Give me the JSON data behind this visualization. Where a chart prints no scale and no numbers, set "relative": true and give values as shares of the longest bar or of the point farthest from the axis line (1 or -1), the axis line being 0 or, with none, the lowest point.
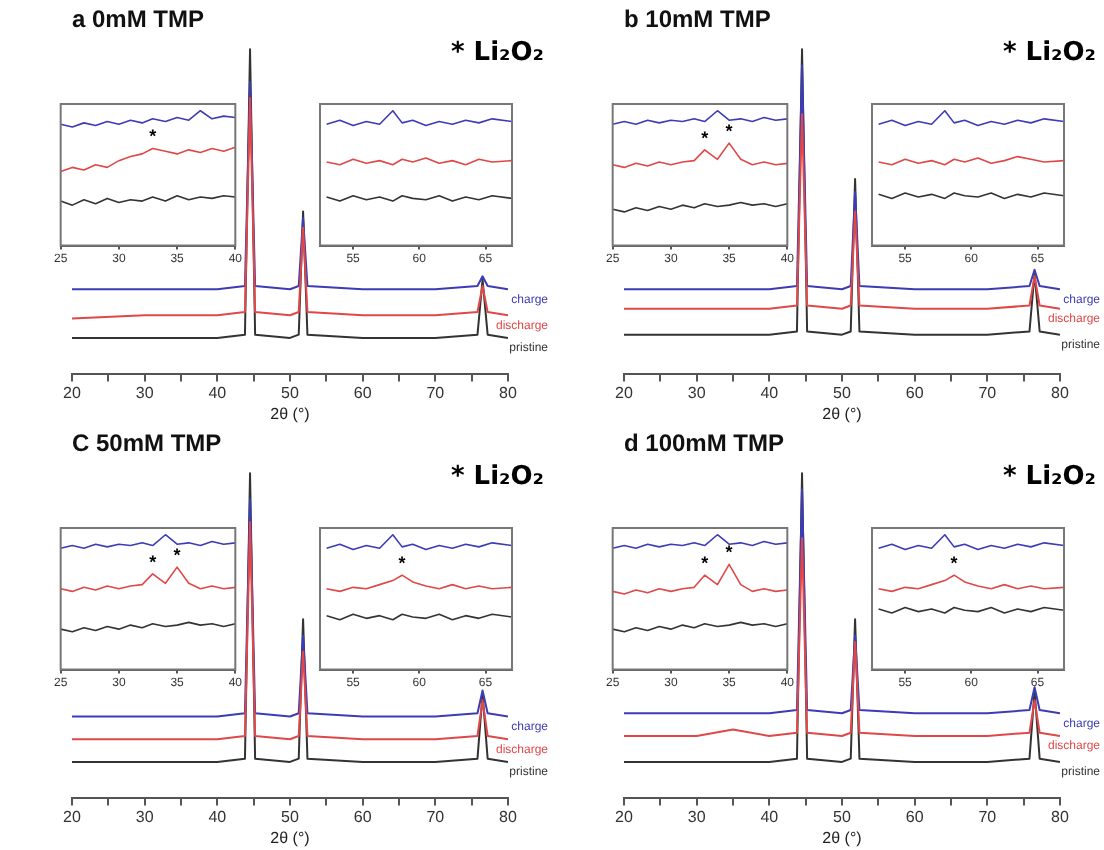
{
  "chart_data": [
    {
      "type": "line",
      "title": "a 0mM TMP",
      "xlabel": "2θ (°)",
      "relative": true,
      "xlim": [
        20,
        80
      ],
      "xticks": [
        20,
        {
          "value": 25,
          "label": null
        },
        30,
        {
          "value": 35,
          "label": null
        },
        40,
        {
          "value": 45,
          "label": null
        },
        50,
        {
          "value": 55,
          "label": null
        },
        60,
        {
          "value": 65,
          "label": null
        },
        70,
        {
          "value": 75,
          "label": null
        },
        80
      ],
      "annotations": [
        "* Li₂O₂"
      ],
      "x": [
        20,
        30,
        40,
        43.8,
        44.5,
        45.2,
        50,
        51.2,
        51.8,
        52.4,
        60,
        70,
        75.8,
        76.5,
        77.2,
        80
      ],
      "series": [
        {
          "name": "charge",
          "color": "#3c3cb4",
          "values": [
            0.26,
            0.26,
            0.26,
            0.27,
            0.9,
            0.27,
            0.26,
            0.27,
            0.48,
            0.27,
            0.26,
            0.26,
            0.27,
            0.3,
            0.27,
            0.26
          ]
        },
        {
          "name": "discharge",
          "color": "#e04848",
          "values": [
            0.17,
            0.18,
            0.18,
            0.19,
            0.85,
            0.19,
            0.18,
            0.19,
            0.45,
            0.19,
            0.18,
            0.18,
            0.19,
            0.27,
            0.19,
            0.18
          ]
        },
        {
          "name": "pristine",
          "color": "#333333",
          "values": [
            0.11,
            0.11,
            0.11,
            0.12,
            1,
            0.12,
            0.11,
            0.12,
            0.5,
            0.12,
            0.11,
            0.11,
            0.12,
            0.29,
            0.12,
            0.11
          ]
        }
      ]
    },
    {
      "type": "line",
      "relative": true,
      "xlim": [
        25,
        40
      ],
      "xticks": [
        25,
        30,
        35,
        40
      ],
      "annotations": [
        {
          "text": "*",
          "x": 32.9,
          "y": 0.72
        }
      ],
      "x": [
        25,
        26,
        27,
        28,
        29,
        30,
        31,
        32,
        32.9,
        34,
        35,
        36,
        37,
        38,
        39,
        40
      ],
      "series": [
        {
          "color": "#3c3cb4",
          "values": [
            0.9,
            0.88,
            0.91,
            0.89,
            0.92,
            0.9,
            0.93,
            0.91,
            0.94,
            0.92,
            0.95,
            0.93,
            1,
            0.94,
            0.96,
            0.95
          ]
        },
        {
          "color": "#e04848",
          "values": [
            0.55,
            0.58,
            0.56,
            0.6,
            0.58,
            0.63,
            0.66,
            0.68,
            0.72,
            0.7,
            0.68,
            0.71,
            0.69,
            0.72,
            0.7,
            0.73
          ]
        },
        {
          "color": "#333333",
          "values": [
            0.33,
            0.3,
            0.34,
            0.31,
            0.35,
            0.32,
            0.34,
            0.33,
            0.36,
            0.33,
            0.37,
            0.34,
            0.36,
            0.35,
            0.37,
            0.36
          ]
        }
      ]
    },
    {
      "type": "line",
      "relative": true,
      "xlim": [
        52.5,
        67
      ],
      "xticks": [
        55,
        60,
        65
      ],
      "x": [
        53,
        54,
        55,
        56,
        57,
        58,
        58.7,
        59.5,
        60.5,
        61.5,
        62.5,
        63.5,
        64.5,
        65.5,
        67
      ],
      "series": [
        {
          "color": "#3c3cb4",
          "values": [
            0.9,
            0.93,
            0.89,
            0.92,
            0.9,
            1,
            0.91,
            0.93,
            0.89,
            0.92,
            0.9,
            0.93,
            0.91,
            0.94,
            0.92
          ]
        },
        {
          "color": "#e04848",
          "values": [
            0.62,
            0.6,
            0.64,
            0.61,
            0.63,
            0.6,
            0.64,
            0.62,
            0.65,
            0.61,
            0.63,
            0.6,
            0.64,
            0.62,
            0.63
          ]
        },
        {
          "color": "#333333",
          "values": [
            0.36,
            0.33,
            0.37,
            0.34,
            0.36,
            0.33,
            0.37,
            0.35,
            0.34,
            0.37,
            0.33,
            0.36,
            0.34,
            0.37,
            0.35
          ]
        }
      ]
    },
    {
      "type": "line",
      "title": "b 10mM TMP",
      "xlabel": "2θ (°)",
      "relative": true,
      "xlim": [
        20,
        80
      ],
      "xticks": [
        20,
        {
          "value": 25,
          "label": null
        },
        30,
        {
          "value": 35,
          "label": null
        },
        40,
        {
          "value": 45,
          "label": null
        },
        50,
        {
          "value": 55,
          "label": null
        },
        60,
        {
          "value": 65,
          "label": null
        },
        70,
        {
          "value": 75,
          "label": null
        },
        80
      ],
      "annotations": [
        "* Li₂O₂"
      ],
      "x": [
        20,
        30,
        40,
        43.8,
        44.5,
        45.2,
        50,
        51.2,
        51.8,
        52.4,
        60,
        70,
        75.8,
        76.5,
        77.2,
        80
      ],
      "series": [
        {
          "name": "charge",
          "color": "#3c3cb4",
          "values": [
            0.26,
            0.26,
            0.26,
            0.27,
            0.95,
            0.27,
            0.26,
            0.27,
            0.56,
            0.27,
            0.26,
            0.26,
            0.27,
            0.32,
            0.27,
            0.26
          ]
        },
        {
          "name": "discharge",
          "color": "#e04848",
          "values": [
            0.2,
            0.2,
            0.2,
            0.21,
            0.8,
            0.21,
            0.2,
            0.21,
            0.5,
            0.21,
            0.2,
            0.2,
            0.21,
            0.3,
            0.21,
            0.2
          ]
        },
        {
          "name": "pristine",
          "color": "#333333",
          "values": [
            0.12,
            0.12,
            0.12,
            0.13,
            1,
            0.13,
            0.12,
            0.13,
            0.6,
            0.13,
            0.12,
            0.12,
            0.13,
            0.31,
            0.13,
            0.12
          ]
        }
      ]
    },
    {
      "type": "line",
      "relative": true,
      "xlim": [
        25,
        40
      ],
      "xticks": [
        25,
        30,
        35,
        40
      ],
      "annotations": [
        {
          "text": "*",
          "x": 32.9,
          "y": 0.71
        },
        {
          "text": "*",
          "x": 35,
          "y": 0.76
        }
      ],
      "x": [
        25,
        26,
        27,
        28,
        29,
        30,
        31,
        32,
        32.9,
        34,
        35,
        36,
        37,
        38,
        39,
        40
      ],
      "series": [
        {
          "color": "#3c3cb4",
          "values": [
            0.9,
            0.92,
            0.9,
            0.93,
            0.91,
            0.93,
            0.92,
            0.94,
            0.92,
            1,
            0.93,
            0.94,
            0.92,
            0.95,
            0.93,
            0.94
          ]
        },
        {
          "color": "#e04848",
          "values": [
            0.6,
            0.58,
            0.61,
            0.59,
            0.62,
            0.6,
            0.62,
            0.63,
            0.71,
            0.64,
            0.76,
            0.64,
            0.6,
            0.62,
            0.6,
            0.61
          ]
        },
        {
          "color": "#333333",
          "values": [
            0.27,
            0.25,
            0.28,
            0.26,
            0.29,
            0.27,
            0.3,
            0.28,
            0.31,
            0.29,
            0.3,
            0.32,
            0.3,
            0.31,
            0.29,
            0.31
          ]
        }
      ]
    },
    {
      "type": "line",
      "relative": true,
      "xlim": [
        52.5,
        67
      ],
      "xticks": [
        55,
        60,
        65
      ],
      "x": [
        53,
        54,
        55,
        56,
        57,
        58,
        58.7,
        59.5,
        60.5,
        61.5,
        62.5,
        63.5,
        64.5,
        65.5,
        67
      ],
      "series": [
        {
          "color": "#3c3cb4",
          "values": [
            0.9,
            0.93,
            0.89,
            0.92,
            0.9,
            1,
            0.91,
            0.93,
            0.89,
            0.92,
            0.9,
            0.93,
            0.91,
            0.94,
            0.92
          ]
        },
        {
          "color": "#e04848",
          "values": [
            0.62,
            0.6,
            0.64,
            0.61,
            0.63,
            0.6,
            0.64,
            0.62,
            0.65,
            0.61,
            0.63,
            0.66,
            0.64,
            0.62,
            0.63
          ]
        },
        {
          "color": "#333333",
          "values": [
            0.38,
            0.35,
            0.39,
            0.36,
            0.38,
            0.35,
            0.39,
            0.37,
            0.36,
            0.39,
            0.35,
            0.38,
            0.36,
            0.39,
            0.37
          ]
        }
      ]
    },
    {
      "type": "line",
      "title": "C 50mM TMP",
      "xlabel": "2θ (°)",
      "relative": true,
      "xlim": [
        20,
        80
      ],
      "xticks": [
        20,
        {
          "value": 25,
          "label": null
        },
        30,
        {
          "value": 35,
          "label": null
        },
        40,
        {
          "value": 45,
          "label": null
        },
        50,
        {
          "value": 55,
          "label": null
        },
        60,
        {
          "value": 65,
          "label": null
        },
        70,
        {
          "value": 75,
          "label": null
        },
        80
      ],
      "annotations": [
        "* Li₂O₂"
      ],
      "x": [
        20,
        30,
        40,
        43.8,
        44.5,
        45.2,
        50,
        51.2,
        51.8,
        52.4,
        60,
        70,
        75.8,
        76.5,
        77.2,
        80
      ],
      "series": [
        {
          "name": "charge",
          "color": "#3c3cb4",
          "values": [
            0.25,
            0.25,
            0.25,
            0.26,
            0.92,
            0.26,
            0.25,
            0.26,
            0.5,
            0.26,
            0.25,
            0.25,
            0.26,
            0.33,
            0.26,
            0.25
          ]
        },
        {
          "name": "discharge",
          "color": "#e04848",
          "values": [
            0.18,
            0.18,
            0.18,
            0.19,
            0.85,
            0.19,
            0.18,
            0.19,
            0.45,
            0.19,
            0.18,
            0.18,
            0.19,
            0.3,
            0.19,
            0.18
          ]
        },
        {
          "name": "pristine",
          "color": "#333333",
          "values": [
            0.11,
            0.11,
            0.11,
            0.12,
            1,
            0.12,
            0.11,
            0.12,
            0.55,
            0.12,
            0.11,
            0.11,
            0.12,
            0.32,
            0.12,
            0.11
          ]
        }
      ]
    },
    {
      "type": "line",
      "relative": true,
      "xlim": [
        25,
        40
      ],
      "xticks": [
        25,
        30,
        35,
        40
      ],
      "annotations": [
        {
          "text": "*",
          "x": 32.9,
          "y": 0.71
        },
        {
          "text": "*",
          "x": 35,
          "y": 0.76
        }
      ],
      "x": [
        25,
        26,
        27,
        28,
        29,
        30,
        31,
        32,
        32.9,
        34,
        35,
        36,
        37,
        38,
        39,
        40
      ],
      "series": [
        {
          "color": "#3c3cb4",
          "values": [
            0.9,
            0.92,
            0.9,
            0.93,
            0.91,
            0.93,
            0.92,
            0.94,
            0.92,
            1,
            0.93,
            0.94,
            0.92,
            0.95,
            0.93,
            0.94
          ]
        },
        {
          "color": "#e04848",
          "values": [
            0.6,
            0.58,
            0.61,
            0.59,
            0.62,
            0.6,
            0.62,
            0.63,
            0.71,
            0.64,
            0.76,
            0.64,
            0.6,
            0.62,
            0.6,
            0.61
          ]
        },
        {
          "color": "#333333",
          "values": [
            0.3,
            0.28,
            0.31,
            0.29,
            0.32,
            0.3,
            0.33,
            0.31,
            0.34,
            0.32,
            0.33,
            0.35,
            0.33,
            0.34,
            0.32,
            0.34
          ]
        }
      ]
    },
    {
      "type": "line",
      "relative": true,
      "xlim": [
        52.5,
        67
      ],
      "xticks": [
        55,
        60,
        65
      ],
      "annotations": [
        {
          "text": "*",
          "x": 58.7,
          "y": 0.7
        }
      ],
      "x": [
        53,
        54,
        55,
        56,
        57,
        58,
        58.7,
        59.5,
        60.5,
        61.5,
        62.5,
        63.5,
        64.5,
        65.5,
        67
      ],
      "series": [
        {
          "color": "#3c3cb4",
          "values": [
            0.9,
            0.93,
            0.89,
            0.92,
            0.9,
            1,
            0.91,
            0.93,
            0.89,
            0.92,
            0.9,
            0.93,
            0.91,
            0.94,
            0.92
          ]
        },
        {
          "color": "#e04848",
          "values": [
            0.6,
            0.58,
            0.61,
            0.6,
            0.63,
            0.66,
            0.7,
            0.65,
            0.62,
            0.6,
            0.63,
            0.6,
            0.62,
            0.6,
            0.61
          ]
        },
        {
          "color": "#333333",
          "values": [
            0.4,
            0.37,
            0.41,
            0.38,
            0.4,
            0.37,
            0.41,
            0.39,
            0.38,
            0.41,
            0.37,
            0.4,
            0.38,
            0.41,
            0.39
          ]
        }
      ]
    },
    {
      "type": "line",
      "title": "d 100mM TMP",
      "xlabel": "2θ (°)",
      "relative": true,
      "xlim": [
        20,
        80
      ],
      "xticks": [
        20,
        {
          "value": 25,
          "label": null
        },
        30,
        {
          "value": 35,
          "label": null
        },
        40,
        {
          "value": 45,
          "label": null
        },
        50,
        {
          "value": 55,
          "label": null
        },
        60,
        {
          "value": 65,
          "label": null
        },
        70,
        {
          "value": 75,
          "label": null
        },
        80
      ],
      "annotations": [
        "* Li₂O₂"
      ],
      "x": [
        20,
        30,
        35,
        40,
        43.8,
        44.5,
        45.2,
        50,
        51.2,
        51.8,
        52.4,
        60,
        70,
        75.8,
        76.5,
        77.2,
        80
      ],
      "series": [
        {
          "name": "charge",
          "color": "#3c3cb4",
          "values": [
            0.26,
            0.26,
            0.26,
            0.26,
            0.27,
            0.95,
            0.27,
            0.26,
            0.27,
            0.5,
            0.27,
            0.26,
            0.26,
            0.27,
            0.34,
            0.27,
            0.26
          ]
        },
        {
          "name": "discharge",
          "color": "#e04848",
          "values": [
            0.19,
            0.19,
            0.21,
            0.19,
            0.2,
            0.8,
            0.2,
            0.19,
            0.2,
            0.48,
            0.2,
            0.19,
            0.19,
            0.2,
            0.3,
            0.2,
            0.19
          ]
        },
        {
          "name": "pristine",
          "color": "#333333",
          "values": [
            0.11,
            0.11,
            0.11,
            0.11,
            0.12,
            1,
            0.12,
            0.11,
            0.12,
            0.55,
            0.12,
            0.11,
            0.11,
            0.12,
            0.33,
            0.12,
            0.11
          ]
        }
      ]
    },
    {
      "type": "line",
      "relative": true,
      "xlim": [
        25,
        40
      ],
      "xticks": [
        25,
        30,
        35,
        40
      ],
      "annotations": [
        {
          "text": "*",
          "x": 32.9,
          "y": 0.7
        },
        {
          "text": "*",
          "x": 35,
          "y": 0.78
        }
      ],
      "x": [
        25,
        26,
        27,
        28,
        29,
        30,
        31,
        32,
        32.9,
        34,
        35,
        36,
        37,
        38,
        39,
        40
      ],
      "series": [
        {
          "color": "#3c3cb4",
          "values": [
            0.9,
            0.92,
            0.9,
            0.93,
            0.91,
            0.93,
            0.92,
            0.94,
            0.92,
            1,
            0.93,
            0.94,
            0.92,
            0.95,
            0.93,
            0.94
          ]
        },
        {
          "color": "#e04848",
          "values": [
            0.58,
            0.56,
            0.59,
            0.57,
            0.6,
            0.58,
            0.6,
            0.61,
            0.7,
            0.63,
            0.78,
            0.63,
            0.58,
            0.6,
            0.58,
            0.59
          ]
        },
        {
          "color": "#333333",
          "values": [
            0.3,
            0.28,
            0.31,
            0.29,
            0.32,
            0.3,
            0.33,
            0.31,
            0.34,
            0.32,
            0.33,
            0.35,
            0.33,
            0.34,
            0.32,
            0.34
          ]
        }
      ]
    },
    {
      "type": "line",
      "relative": true,
      "xlim": [
        52.5,
        67
      ],
      "xticks": [
        55,
        60,
        65
      ],
      "annotations": [
        {
          "text": "*",
          "x": 58.7,
          "y": 0.7
        }
      ],
      "x": [
        53,
        54,
        55,
        56,
        57,
        58,
        58.7,
        59.5,
        60.5,
        61.5,
        62.5,
        63.5,
        64.5,
        65.5,
        67
      ],
      "series": [
        {
          "color": "#3c3cb4",
          "values": [
            0.9,
            0.93,
            0.89,
            0.92,
            0.9,
            1,
            0.91,
            0.93,
            0.89,
            0.92,
            0.9,
            0.93,
            0.91,
            0.94,
            0.92
          ]
        },
        {
          "color": "#e04848",
          "values": [
            0.6,
            0.58,
            0.61,
            0.6,
            0.63,
            0.66,
            0.7,
            0.65,
            0.62,
            0.6,
            0.63,
            0.6,
            0.62,
            0.6,
            0.61
          ]
        },
        {
          "color": "#333333",
          "values": [
            0.45,
            0.42,
            0.46,
            0.43,
            0.45,
            0.42,
            0.46,
            0.44,
            0.43,
            0.46,
            0.42,
            0.45,
            0.43,
            0.46,
            0.44
          ]
        }
      ]
    }
  ]
}
